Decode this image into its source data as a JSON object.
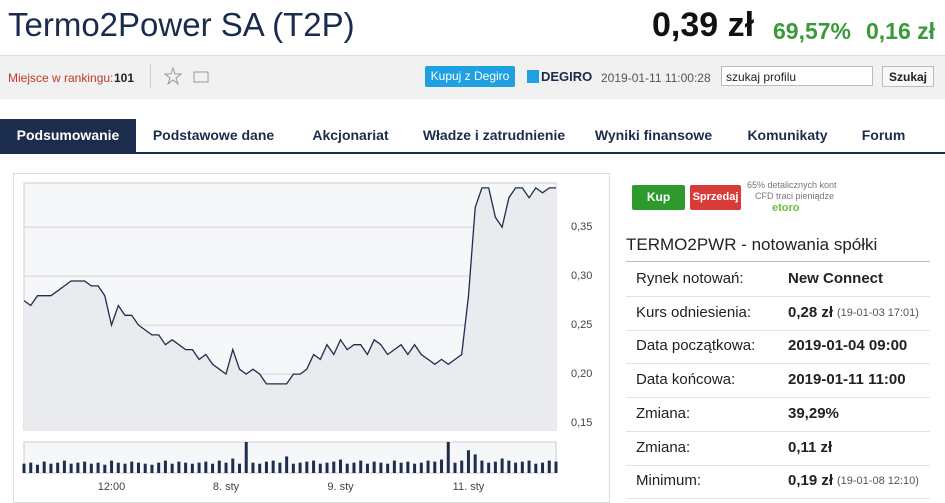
{
  "header": {
    "title": "Termo2Power SA (T2P)",
    "price": "0,39 zł",
    "change_pct": "69,57%",
    "change_abs": "0,16 zł"
  },
  "toolbar": {
    "rank_label": "Miejsce w rankingu:",
    "rank_value": "101",
    "buy_button": "Kupuj z Degiro",
    "degiro": "DEGIRO",
    "timestamp": "2019-01-11 11:00:28",
    "search_placeholder": "szukaj profilu",
    "search_button": "Szukaj"
  },
  "nav": {
    "tabs": [
      "Podsumowanie",
      "Podstawowe dane",
      "Akcjonariat",
      "Władze i zatrudnienie",
      "Wyniki finansowe",
      "Komunikaty",
      "Forum"
    ]
  },
  "trade": {
    "buy": "Kup",
    "sell": "Sprzedaj",
    "disclaimer_1": "65% detalicznych kont",
    "disclaimer_2": "CFD traci pieniądze",
    "brand": "etoro"
  },
  "quote": {
    "heading": "TERMO2PWR - notowania spółki",
    "rows": [
      {
        "label": "Rynek notowań:",
        "value": "New Connect"
      },
      {
        "label": "Kurs odniesienia:",
        "value": "0,28 zł",
        "note": "(19-01-03 17:01)"
      },
      {
        "label": "Data początkowa:",
        "value": "2019-01-04 09:00"
      },
      {
        "label": "Data końcowa:",
        "value": "2019-01-11 11:00"
      },
      {
        "label": "Zmiana:",
        "value": "39,29%"
      },
      {
        "label": "Zmiana:",
        "value": "0,11 zł"
      },
      {
        "label": "Minimum:",
        "value": "0,19 zł",
        "note": "(19-01-08 12:10)"
      }
    ]
  },
  "chart_data": {
    "type": "line",
    "grid": true,
    "categories": [
      null,
      null,
      null,
      null,
      null,
      null,
      null,
      null,
      null,
      null,
      null,
      null,
      null,
      "12:00",
      null,
      null,
      null,
      null,
      null,
      null,
      null,
      null,
      null,
      null,
      null,
      null,
      null,
      null,
      null,
      null,
      "8. sty",
      null,
      null,
      null,
      null,
      null,
      null,
      null,
      null,
      null,
      null,
      null,
      null,
      null,
      null,
      null,
      null,
      "9. sty",
      null,
      null,
      null,
      null,
      null,
      null,
      null,
      null,
      null,
      null,
      null,
      null,
      null,
      null,
      null,
      null,
      null,
      null,
      "11. sty",
      null,
      null,
      null,
      null,
      null,
      null,
      null,
      null,
      null,
      null,
      null,
      null,
      null
    ],
    "series": [
      {
        "color": "#1f2d4d",
        "values": [
          0.275,
          0.27,
          0.28,
          0.28,
          0.28,
          0.285,
          0.29,
          0.295,
          0.295,
          0.295,
          0.29,
          0.29,
          0.28,
          0.25,
          0.27,
          0.26,
          0.26,
          0.25,
          0.245,
          0.24,
          0.24,
          0.23,
          0.235,
          0.23,
          0.225,
          0.225,
          0.215,
          0.22,
          0.21,
          0.205,
          0.2,
          0.225,
          0.205,
          0.2,
          0.205,
          0.2,
          0.19,
          0.19,
          0.19,
          0.19,
          0.2,
          0.2,
          0.205,
          0.22,
          0.215,
          0.23,
          0.22,
          0.235,
          0.225,
          0.23,
          0.23,
          0.22,
          0.235,
          0.23,
          0.22,
          0.225,
          0.23,
          0.22,
          0.23,
          0.22,
          0.215,
          0.21,
          0.215,
          0.21,
          0.215,
          0.22,
          0.28,
          0.37,
          0.39,
          0.39,
          0.36,
          0.35,
          0.38,
          0.39,
          0.39,
          0.38,
          0.39,
          0.385,
          0.39,
          0.39
        ]
      }
    ],
    "ylim": [
      0.143,
      0.395
    ],
    "yticks": [
      {
        "value": 0.15,
        "label": "0,15"
      },
      {
        "value": 0.2,
        "label": "0,20"
      },
      {
        "value": 0.25,
        "label": "0,25"
      },
      {
        "value": 0.3,
        "label": "0,30"
      },
      {
        "value": 0.35,
        "label": "0,35"
      }
    ],
    "volume": {
      "color": "#1f2d4d",
      "ylim": [
        0,
        30
      ],
      "values": [
        9,
        10,
        8,
        11,
        9,
        10,
        12,
        9,
        10,
        11,
        9,
        10,
        8,
        12,
        10,
        9,
        11,
        10,
        9,
        8,
        10,
        12,
        9,
        11,
        10,
        9,
        10,
        11,
        9,
        12,
        10,
        14,
        9,
        30,
        10,
        9,
        11,
        12,
        10,
        16,
        9,
        10,
        11,
        12,
        9,
        10,
        11,
        13,
        9,
        10,
        12,
        9,
        11,
        10,
        9,
        12,
        10,
        11,
        9,
        10,
        12,
        11,
        13,
        30,
        10,
        12,
        22,
        18,
        12,
        10,
        11,
        14,
        12,
        10,
        11,
        12,
        9,
        10,
        12,
        11
      ]
    }
  }
}
